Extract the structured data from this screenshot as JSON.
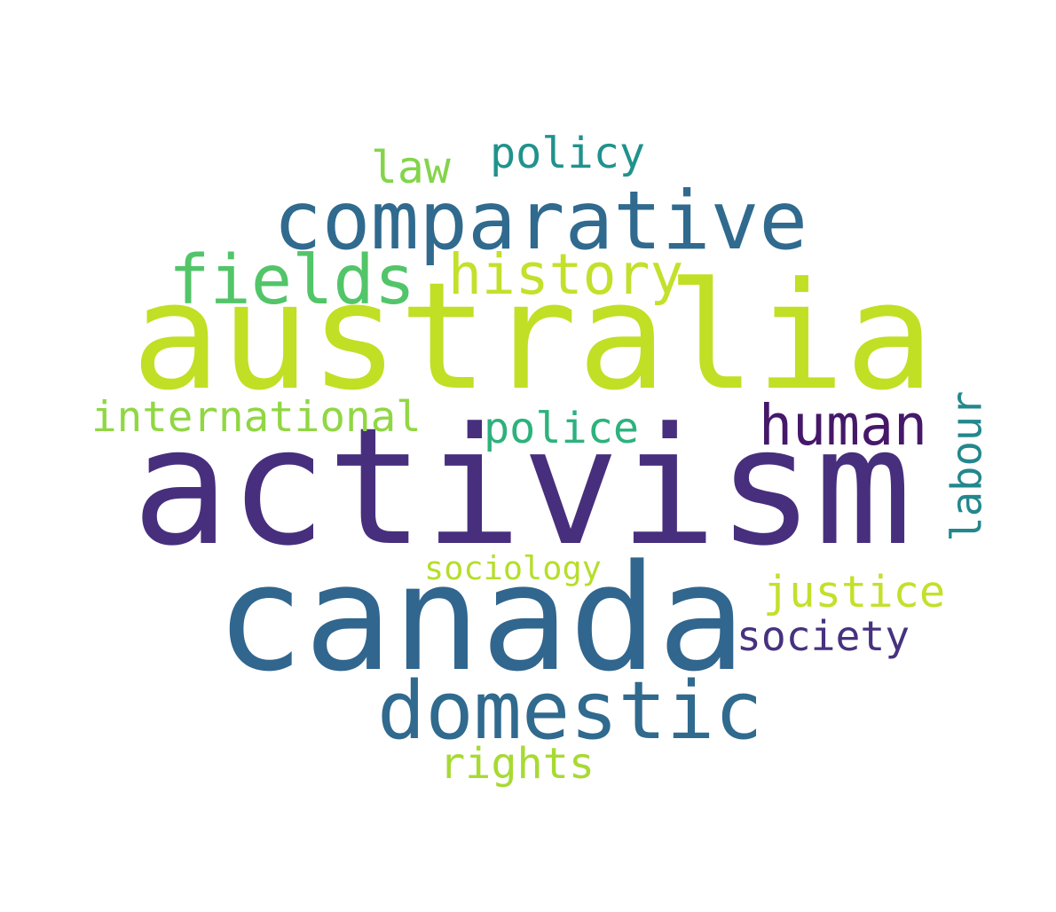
{
  "words": [
    {
      "text": "activism",
      "color": "#472f7d",
      "weight_rank": 1
    },
    {
      "text": "australia",
      "color": "#c1df24",
      "weight_rank": 2
    },
    {
      "text": "canada",
      "color": "#31668e",
      "weight_rank": 3
    },
    {
      "text": "comparative",
      "color": "#306a8e",
      "weight_rank": 4
    },
    {
      "text": "domestic",
      "color": "#306a8e",
      "weight_rank": 5
    },
    {
      "text": "fields",
      "color": "#52c569",
      "weight_rank": 6
    },
    {
      "text": "history",
      "color": "#c3e02b",
      "weight_rank": 7
    },
    {
      "text": "human",
      "color": "#45186a",
      "weight_rank": 8
    },
    {
      "text": "labour",
      "color": "#23878d",
      "weight_rank": 9,
      "orientation": "vertical"
    },
    {
      "text": "international",
      "color": "#90d743",
      "weight_rank": 10
    },
    {
      "text": "justice",
      "color": "#c3e02b",
      "weight_rank": 11
    },
    {
      "text": "policy",
      "color": "#20928c",
      "weight_rank": 12
    },
    {
      "text": "police",
      "color": "#2db27d",
      "weight_rank": 13
    },
    {
      "text": "society",
      "color": "#46327e",
      "weight_rank": 14
    },
    {
      "text": "rights",
      "color": "#a7da33",
      "weight_rank": 15
    },
    {
      "text": "law",
      "color": "#84d44b",
      "weight_rank": 16
    },
    {
      "text": "sociology",
      "color": "#b5de2b",
      "weight_rank": 17
    }
  ]
}
